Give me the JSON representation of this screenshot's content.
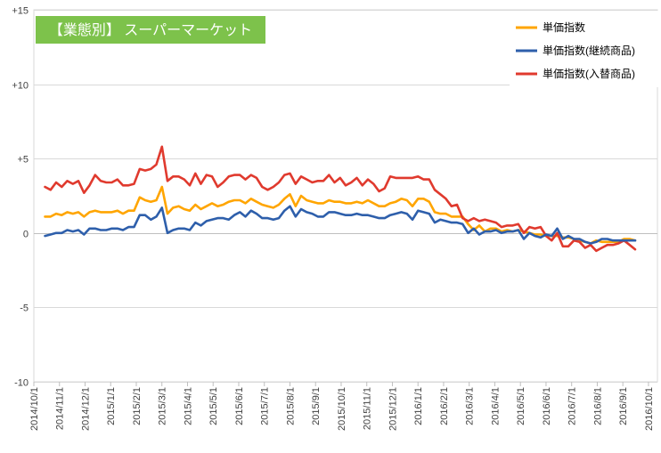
{
  "chart_data": {
    "type": "line",
    "title": "【業態別】 スーパーマーケット",
    "title_bg": "#7dc24b",
    "y_ticks": [
      "+15",
      "+10",
      "+5",
      "0",
      "-5",
      "-10"
    ],
    "y_tick_values": [
      15,
      10,
      5,
      0,
      -5,
      -10
    ],
    "ylim": [
      -10,
      15
    ],
    "x_labels": [
      "2014/10/1",
      "2014/11/1",
      "2014/12/1",
      "2015/1/1",
      "2015/2/1",
      "2015/3/1",
      "2015/4/1",
      "2015/5/1",
      "2015/6/1",
      "2015/7/1",
      "2015/8/1",
      "2015/9/1",
      "2015/10/1",
      "2015/11/1",
      "2015/12/1",
      "2016/1/1",
      "2016/2/1",
      "2016/3/1",
      "2016/4/1",
      "2016/5/1",
      "2016/6/1",
      "2016/7/1",
      "2016/8/1",
      "2016/9/1",
      "2016/10/1"
    ],
    "x_index_start": 2,
    "series": [
      {
        "name": "単価指数",
        "color": "#ffa500",
        "values": [
          1.1,
          1.1,
          1.3,
          1.2,
          1.4,
          1.3,
          1.4,
          1.1,
          1.4,
          1.5,
          1.4,
          1.4,
          1.4,
          1.5,
          1.3,
          1.5,
          1.5,
          2.4,
          2.2,
          2.1,
          2.2,
          3.1,
          1.3,
          1.7,
          1.8,
          1.6,
          1.5,
          1.9,
          1.6,
          1.8,
          2.0,
          1.8,
          1.9,
          2.1,
          2.2,
          2.2,
          2.0,
          2.3,
          2.1,
          1.9,
          1.8,
          1.7,
          1.9,
          2.3,
          2.6,
          1.8,
          2.5,
          2.2,
          2.1,
          2.0,
          2.0,
          2.2,
          2.1,
          2.1,
          2.0,
          2.0,
          2.1,
          2.0,
          2.2,
          2.0,
          1.8,
          1.8,
          2.0,
          2.1,
          2.3,
          2.2,
          1.8,
          2.3,
          2.3,
          2.1,
          1.4,
          1.3,
          1.3,
          1.1,
          1.1,
          1.1,
          0.6,
          0.2,
          0.5,
          0.1,
          0.3,
          0.3,
          0.1,
          0.2,
          0.1,
          0.2,
          0.1,
          0.0,
          -0.1,
          -0.1,
          -0.2,
          -0.2,
          -0.2,
          -0.3,
          -0.3,
          -0.4,
          -0.5,
          -0.6,
          -0.7,
          -0.5,
          -0.6,
          -0.6,
          -0.6,
          -0.6,
          -0.4,
          -0.4,
          -0.5
        ]
      },
      {
        "name": "単価指数(継続商品)",
        "color": "#2e5fab",
        "values": [
          -0.2,
          -0.1,
          0.0,
          0.0,
          0.2,
          0.1,
          0.2,
          -0.1,
          0.3,
          0.3,
          0.2,
          0.2,
          0.3,
          0.3,
          0.2,
          0.4,
          0.4,
          1.2,
          1.2,
          0.9,
          1.1,
          1.7,
          0.0,
          0.2,
          0.3,
          0.3,
          0.2,
          0.7,
          0.5,
          0.8,
          0.9,
          1.0,
          1.0,
          0.9,
          1.2,
          1.4,
          1.1,
          1.5,
          1.3,
          1.0,
          1.0,
          0.9,
          1.0,
          1.5,
          1.8,
          1.1,
          1.6,
          1.4,
          1.3,
          1.1,
          1.1,
          1.4,
          1.4,
          1.3,
          1.2,
          1.2,
          1.3,
          1.2,
          1.2,
          1.1,
          1.0,
          1.0,
          1.2,
          1.3,
          1.4,
          1.3,
          0.9,
          1.5,
          1.4,
          1.3,
          0.7,
          0.9,
          0.8,
          0.7,
          0.7,
          0.6,
          0.0,
          0.3,
          -0.1,
          0.1,
          0.1,
          0.2,
          0.0,
          0.1,
          0.1,
          0.2,
          -0.4,
          0.0,
          -0.2,
          -0.3,
          -0.1,
          -0.2,
          0.3,
          -0.4,
          -0.2,
          -0.4,
          -0.4,
          -0.6,
          -0.7,
          -0.6,
          -0.4,
          -0.4,
          -0.5,
          -0.5,
          -0.5,
          -0.5,
          -0.5
        ]
      },
      {
        "name": "単価指数(入替商品)",
        "color": "#e03a2e",
        "values": [
          3.1,
          2.9,
          3.4,
          3.1,
          3.5,
          3.3,
          3.5,
          2.7,
          3.2,
          3.9,
          3.5,
          3.4,
          3.4,
          3.6,
          3.2,
          3.2,
          3.3,
          4.3,
          4.2,
          4.3,
          4.6,
          5.8,
          3.5,
          3.8,
          3.8,
          3.6,
          3.2,
          4.0,
          3.3,
          3.9,
          3.8,
          3.1,
          3.4,
          3.8,
          3.9,
          3.9,
          3.6,
          3.9,
          3.7,
          3.1,
          2.9,
          3.1,
          3.4,
          3.9,
          4.0,
          3.3,
          3.8,
          3.6,
          3.4,
          3.5,
          3.5,
          3.9,
          3.4,
          3.7,
          3.2,
          3.4,
          3.7,
          3.2,
          3.6,
          3.3,
          2.8,
          3.0,
          3.8,
          3.7,
          3.7,
          3.7,
          3.7,
          3.8,
          3.6,
          3.6,
          2.9,
          2.6,
          2.3,
          1.8,
          1.9,
          1.0,
          0.8,
          1.0,
          0.8,
          0.9,
          0.8,
          0.7,
          0.4,
          0.5,
          0.5,
          0.6,
          0.0,
          0.4,
          0.3,
          0.4,
          -0.2,
          -0.5,
          0.0,
          -0.9,
          -0.9,
          -0.5,
          -0.6,
          -1.0,
          -0.8,
          -1.2,
          -1.0,
          -0.8,
          -0.8,
          -0.7,
          -0.5,
          -0.8,
          -1.1
        ]
      }
    ],
    "grid": true,
    "legend_position": "top-right"
  }
}
